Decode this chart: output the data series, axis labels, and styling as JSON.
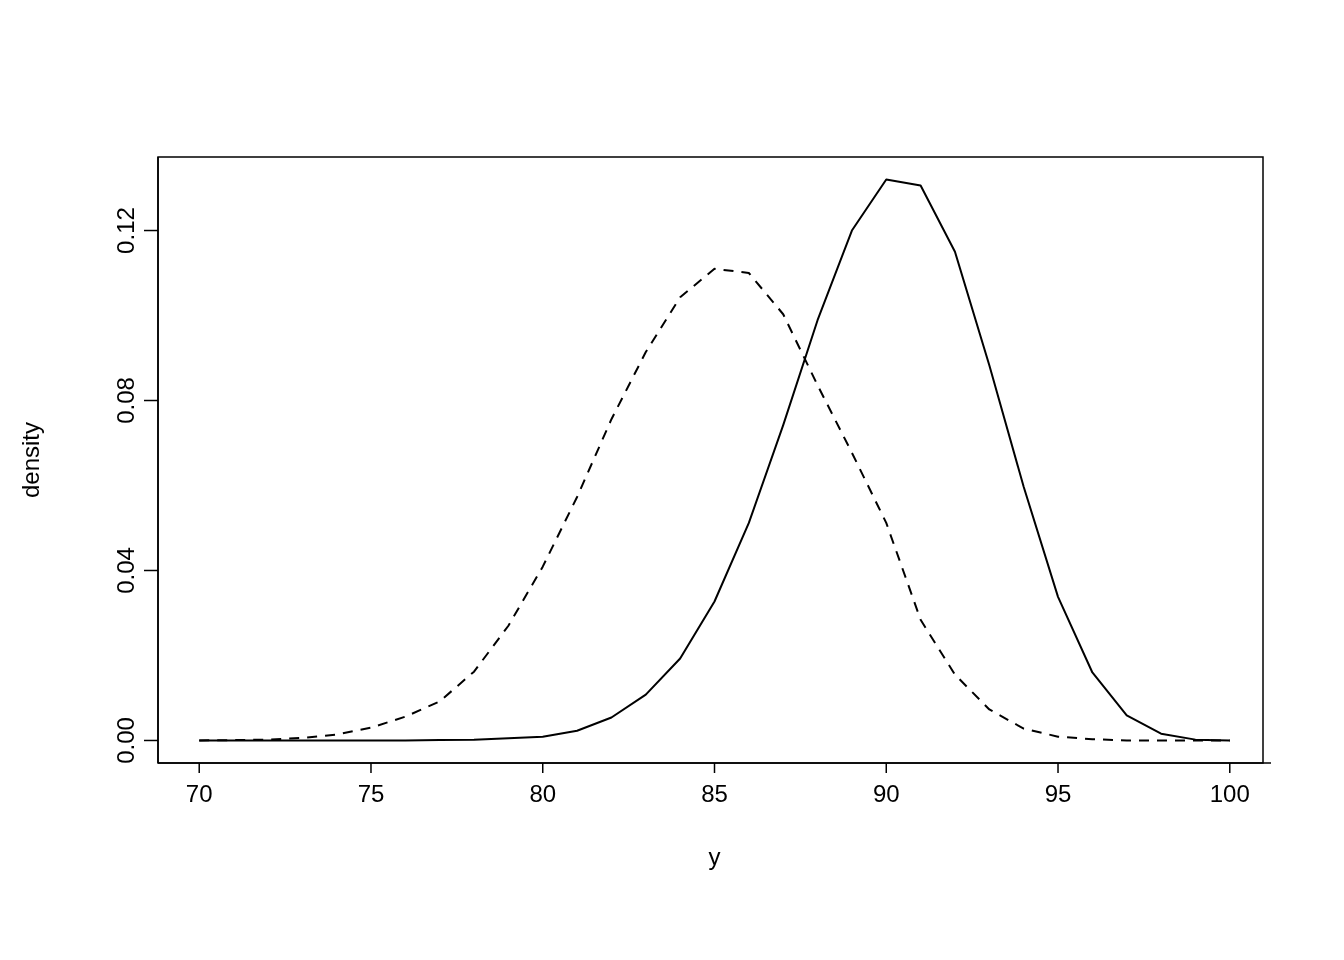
{
  "chart_data": {
    "type": "line",
    "xlabel": "y",
    "ylabel": "density",
    "x": [
      70,
      71,
      72,
      73,
      74,
      75,
      76,
      77,
      78,
      79,
      80,
      81,
      82,
      83,
      84,
      85,
      86,
      87,
      88,
      89,
      90,
      91,
      92,
      93,
      94,
      95,
      96,
      97,
      98,
      99,
      100
    ],
    "series": [
      {
        "color": "#000000",
        "line_style": "solid",
        "values": [
          0,
          0,
          0,
          0,
          0,
          0,
          0,
          0.0001,
          0.0002,
          0.0005,
          0.0009,
          0.0023,
          0.0054,
          0.0108,
          0.0193,
          0.0327,
          0.0512,
          0.0742,
          0.0989,
          0.12,
          0.132,
          0.1306,
          0.115,
          0.0883,
          0.0597,
          0.0338,
          0.016,
          0.0059,
          0.0016,
          0.0002,
          0
        ]
      },
      {
        "color": "#000000",
        "line_style": "dashed",
        "values": [
          0,
          0.0001,
          0.0002,
          0.0006,
          0.0014,
          0.003,
          0.0056,
          0.0092,
          0.0162,
          0.027,
          0.0409,
          0.0573,
          0.0756,
          0.0914,
          0.1043,
          0.111,
          0.11,
          0.1003,
          0.0836,
          0.0677,
          0.0512,
          0.0284,
          0.0155,
          0.0073,
          0.0028,
          0.0009,
          0.0003,
          0,
          0,
          0,
          0
        ]
      }
    ],
    "xlim": [
      68.8,
      101.2
    ],
    "xticks": [
      70,
      75,
      80,
      85,
      90,
      95,
      100
    ],
    "ylim": [
      -0.0053,
      0.1373
    ],
    "yticks": [
      {
        "value": 0,
        "label": "0.00"
      },
      0.04,
      0.08,
      0.12
    ],
    "grid": false,
    "legend": false,
    "marker": "none"
  }
}
